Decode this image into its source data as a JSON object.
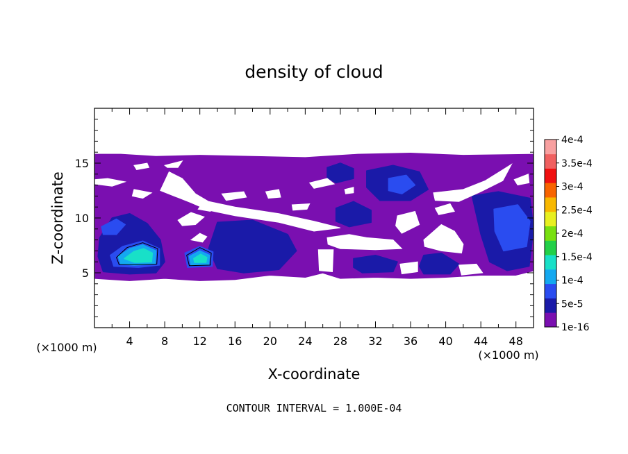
{
  "chart_data": {
    "type": "heatmap",
    "title": "density of cloud",
    "xlabel": "X-coordinate",
    "ylabel": "Z-coordinate",
    "x_unit": "(×1000 m)",
    "z_unit": "(×1000 m)",
    "xlim": [
      0,
      50
    ],
    "ylim": [
      0,
      20
    ],
    "x_ticks": [
      "4",
      "8",
      "12",
      "16",
      "20",
      "24",
      "28",
      "32",
      "36",
      "40",
      "44",
      "48"
    ],
    "y_ticks": [
      "5",
      "10",
      "15"
    ],
    "colorbar": {
      "labels": [
        "1e-16",
        "5e-5",
        "1e-4",
        "1.5e-4",
        "2e-4",
        "2.5e-4",
        "3e-4",
        "3.5e-4",
        "4e-4"
      ],
      "colors": [
        "#7a0fb0",
        "#1a1aa8",
        "#2a4cf0",
        "#14a8f0",
        "#18e0c8",
        "#22d048",
        "#78e010",
        "#e8f020",
        "#f8b800",
        "#f86400",
        "#f01010",
        "#f06060",
        "#f8a0a0"
      ]
    },
    "contour_interval_text": "CONTOUR INTERVAL = 1.000E-04",
    "cloud_regions": [
      {
        "level": 0,
        "points": [
          [
            0,
            15.8
          ],
          [
            3,
            15.8
          ],
          [
            7,
            15.6
          ],
          [
            12,
            15.7
          ],
          [
            18,
            15.6
          ],
          [
            24,
            15.5
          ],
          [
            30,
            15.8
          ],
          [
            36,
            15.9
          ],
          [
            42,
            15.7
          ],
          [
            50,
            15.8
          ],
          [
            50,
            5.2
          ],
          [
            48,
            4.8
          ],
          [
            44,
            4.8
          ],
          [
            40,
            4.6
          ],
          [
            36,
            4.5
          ],
          [
            32,
            4.6
          ],
          [
            28,
            4.5
          ],
          [
            26,
            5
          ],
          [
            24,
            4.6
          ],
          [
            20,
            4.8
          ],
          [
            16,
            4.4
          ],
          [
            12,
            4.3
          ],
          [
            8,
            4.5
          ],
          [
            4,
            4.3
          ],
          [
            0,
            4.5
          ]
        ]
      },
      {
        "level": 1,
        "points": [
          [
            0.6,
            8.2
          ],
          [
            2,
            10
          ],
          [
            4,
            10.4
          ],
          [
            6,
            9.5
          ],
          [
            7.5,
            8
          ],
          [
            8,
            6
          ],
          [
            7,
            5
          ],
          [
            4,
            4.9
          ],
          [
            1,
            5.1
          ],
          [
            0.4,
            6.5
          ]
        ]
      },
      {
        "level": 1,
        "points": [
          [
            14,
            9.6
          ],
          [
            18,
            9.8
          ],
          [
            22,
            8.5
          ],
          [
            23,
            7
          ],
          [
            21,
            5.3
          ],
          [
            17,
            5
          ],
          [
            14,
            5.4
          ],
          [
            13,
            7.2
          ]
        ]
      },
      {
        "level": 1,
        "points": [
          [
            31,
            14.3
          ],
          [
            34,
            14.8
          ],
          [
            37,
            14.2
          ],
          [
            38,
            12.6
          ],
          [
            36,
            11.6
          ],
          [
            32.5,
            11.6
          ],
          [
            31,
            12.8
          ]
        ]
      },
      {
        "level": 1,
        "points": [
          [
            26.5,
            14.6
          ],
          [
            28,
            15
          ],
          [
            29.5,
            14.5
          ],
          [
            29.5,
            13.6
          ],
          [
            27.5,
            13.2
          ],
          [
            26.5,
            13.7
          ]
        ]
      },
      {
        "level": 1,
        "points": [
          [
            27.5,
            10.9
          ],
          [
            29.5,
            11.5
          ],
          [
            31.5,
            10.7
          ],
          [
            31.5,
            9.6
          ],
          [
            29,
            9.2
          ],
          [
            27.5,
            9.7
          ]
        ]
      },
      {
        "level": 1,
        "points": [
          [
            43,
            12
          ],
          [
            46,
            12.4
          ],
          [
            49.6,
            11.8
          ],
          [
            50,
            9
          ],
          [
            49.5,
            5.6
          ],
          [
            47,
            5.2
          ],
          [
            45,
            6
          ],
          [
            44,
            8.5
          ]
        ]
      },
      {
        "level": 1,
        "points": [
          [
            37.5,
            6.6
          ],
          [
            39.5,
            6.8
          ],
          [
            41.5,
            5.8
          ],
          [
            40.5,
            4.9
          ],
          [
            37.5,
            4.9
          ],
          [
            37,
            5.6
          ]
        ]
      },
      {
        "level": 1,
        "points": [
          [
            29.5,
            6.3
          ],
          [
            32,
            6.6
          ],
          [
            34.5,
            6
          ],
          [
            34,
            5.1
          ],
          [
            30.5,
            5
          ],
          [
            29.5,
            5.5
          ]
        ]
      },
      {
        "level": 2,
        "points": [
          [
            1.8,
            6.6
          ],
          [
            3.2,
            7.4
          ],
          [
            5.5,
            7.9
          ],
          [
            7.4,
            7.2
          ],
          [
            7.4,
            5.7
          ],
          [
            5,
            5.5
          ],
          [
            2.2,
            5.6
          ]
        ]
      },
      {
        "level": 2,
        "points": [
          [
            10.3,
            6.8
          ],
          [
            12,
            7.4
          ],
          [
            13.5,
            6.9
          ],
          [
            13.4,
            5.6
          ],
          [
            10.6,
            5.5
          ]
        ]
      },
      {
        "level": 2,
        "points": [
          [
            33.5,
            13.6
          ],
          [
            35.5,
            13.9
          ],
          [
            36.5,
            13
          ],
          [
            35,
            12.2
          ],
          [
            33.5,
            12.5
          ]
        ]
      },
      {
        "level": 2,
        "points": [
          [
            45.5,
            10.8
          ],
          [
            48.2,
            11.2
          ],
          [
            49.6,
            9.7
          ],
          [
            49.2,
            7.4
          ],
          [
            46.6,
            7
          ],
          [
            45.6,
            8.8
          ]
        ]
      },
      {
        "level": 2,
        "points": [
          [
            0.8,
            9.2
          ],
          [
            2.5,
            9.9
          ],
          [
            3.5,
            9.4
          ],
          [
            2.5,
            8.5
          ],
          [
            1,
            8.5
          ]
        ]
      },
      {
        "level": 3,
        "points": [
          [
            2.7,
            6.5
          ],
          [
            4,
            7.2
          ],
          [
            5.5,
            7.55
          ],
          [
            7,
            7
          ],
          [
            6.9,
            5.8
          ],
          [
            4.5,
            5.7
          ],
          [
            3,
            5.8
          ]
        ]
      },
      {
        "level": 3,
        "points": [
          [
            10.8,
            6.5
          ],
          [
            12,
            7
          ],
          [
            13.1,
            6.6
          ],
          [
            13,
            5.75
          ],
          [
            11,
            5.7
          ]
        ]
      },
      {
        "level": 4,
        "points": [
          [
            3.4,
            6.3
          ],
          [
            4.5,
            6.95
          ],
          [
            5.6,
            7.2
          ],
          [
            6.6,
            6.8
          ],
          [
            6.5,
            6.0
          ],
          [
            4.6,
            5.95
          ]
        ]
      },
      {
        "level": 4,
        "points": [
          [
            11.3,
            6.3
          ],
          [
            12.1,
            6.7
          ],
          [
            12.8,
            6.4
          ],
          [
            12.7,
            5.95
          ],
          [
            11.4,
            5.95
          ]
        ]
      }
    ],
    "cloud_gaps": [
      [
        [
          0,
          13.1
        ],
        [
          2,
          12.9
        ],
        [
          3.5,
          13.3
        ],
        [
          1.5,
          13.6
        ],
        [
          0,
          13.5
        ]
      ],
      [
        [
          4.5,
          14.8
        ],
        [
          6,
          15
        ],
        [
          6.2,
          14.6
        ],
        [
          4.8,
          14.4
        ]
      ],
      [
        [
          8,
          14.8
        ],
        [
          10,
          15.2
        ],
        [
          9.5,
          14.6
        ],
        [
          8.3,
          14.6
        ]
      ],
      [
        [
          7.5,
          12.5
        ],
        [
          8.5,
          14.2
        ],
        [
          10,
          13.6
        ],
        [
          11.5,
          12.2
        ],
        [
          13,
          11.5
        ],
        [
          16,
          11
        ],
        [
          21,
          10.4
        ],
        [
          25,
          9.7
        ],
        [
          28,
          9.1
        ],
        [
          25,
          8.8
        ],
        [
          21,
          9.6
        ],
        [
          16,
          10.2
        ],
        [
          13,
          10.7
        ],
        [
          11,
          11.4
        ]
      ],
      [
        [
          4.5,
          12.6
        ],
        [
          6.5,
          12.3
        ],
        [
          5.5,
          11.8
        ],
        [
          4.3,
          12
        ]
      ],
      [
        [
          9.5,
          9.8
        ],
        [
          11,
          10.5
        ],
        [
          12.5,
          10.1
        ],
        [
          11.5,
          9.4
        ],
        [
          10,
          9.3
        ]
      ],
      [
        [
          14.5,
          12.2
        ],
        [
          17,
          12.4
        ],
        [
          17.3,
          11.9
        ],
        [
          15,
          11.6
        ]
      ],
      [
        [
          19.5,
          12.4
        ],
        [
          21,
          12.6
        ],
        [
          21.2,
          11.9
        ],
        [
          19.8,
          11.8
        ]
      ],
      [
        [
          22.5,
          11.2
        ],
        [
          24.5,
          11.3
        ],
        [
          24.2,
          10.8
        ],
        [
          22.6,
          10.7
        ]
      ],
      [
        [
          24.5,
          13.2
        ],
        [
          26.5,
          13.6
        ],
        [
          27.3,
          13.1
        ],
        [
          25,
          12.7
        ]
      ],
      [
        [
          26.5,
          8.2
        ],
        [
          29,
          8.5
        ],
        [
          31,
          8.2
        ],
        [
          34,
          8.0
        ],
        [
          35,
          7.2
        ],
        [
          32,
          7.1
        ],
        [
          28,
          7.2
        ],
        [
          26.6,
          7.6
        ]
      ],
      [
        [
          34.5,
          10.2
        ],
        [
          36.5,
          10.6
        ],
        [
          37,
          9.4
        ],
        [
          35,
          8.6
        ],
        [
          34.3,
          9.3
        ]
      ],
      [
        [
          37.5,
          8
        ],
        [
          39.5,
          9.4
        ],
        [
          41,
          8.8
        ],
        [
          42,
          7.6
        ],
        [
          41.8,
          6.8
        ],
        [
          39.5,
          7
        ],
        [
          37.6,
          7.4
        ]
      ],
      [
        [
          38.6,
          12.3
        ],
        [
          42,
          12.6
        ],
        [
          44.5,
          13.4
        ],
        [
          46.5,
          14.4
        ],
        [
          47.5,
          14.9
        ],
        [
          46.5,
          13.4
        ],
        [
          44,
          12.4
        ],
        [
          41.5,
          11.5
        ],
        [
          38.8,
          11.6
        ]
      ],
      [
        [
          38.8,
          10.9
        ],
        [
          40.5,
          11.3
        ],
        [
          41,
          10.6
        ],
        [
          39.2,
          10.3
        ]
      ],
      [
        [
          47.8,
          13.5
        ],
        [
          49.4,
          14
        ],
        [
          49.5,
          13.2
        ],
        [
          48.2,
          13.0
        ]
      ],
      [
        [
          41.5,
          5.7
        ],
        [
          43.5,
          5.8
        ],
        [
          44.2,
          5
        ],
        [
          41.8,
          4.8
        ]
      ],
      [
        [
          34.8,
          5.8
        ],
        [
          36.8,
          6
        ],
        [
          36.8,
          5.1
        ],
        [
          35,
          4.9
        ]
      ],
      [
        [
          25.5,
          7.1
        ],
        [
          27.2,
          7.1
        ],
        [
          27.1,
          5.1
        ],
        [
          25.6,
          5.2
        ]
      ],
      [
        [
          11,
          8
        ],
        [
          12,
          8.6
        ],
        [
          12.8,
          8.3
        ],
        [
          12.3,
          7.8
        ]
      ],
      [
        [
          11.8,
          10.8
        ],
        [
          12.5,
          11.6
        ],
        [
          13.6,
          11.2
        ],
        [
          13.2,
          10.6
        ]
      ],
      [
        [
          28.5,
          12.6
        ],
        [
          29.5,
          12.8
        ],
        [
          29.5,
          12.3
        ],
        [
          28.6,
          12.2
        ]
      ]
    ],
    "contour_lines": [
      [
        [
          2.5,
          6.4
        ],
        [
          3.7,
          7.3
        ],
        [
          5.5,
          7.75
        ],
        [
          7.2,
          7.2
        ],
        [
          7.1,
          5.8
        ],
        [
          4.6,
          5.75
        ],
        [
          2.8,
          5.75
        ]
      ],
      [
        [
          10.5,
          6.6
        ],
        [
          12,
          7.3
        ],
        [
          13.3,
          6.8
        ],
        [
          13.2,
          5.7
        ],
        [
          10.8,
          5.65
        ]
      ]
    ]
  }
}
